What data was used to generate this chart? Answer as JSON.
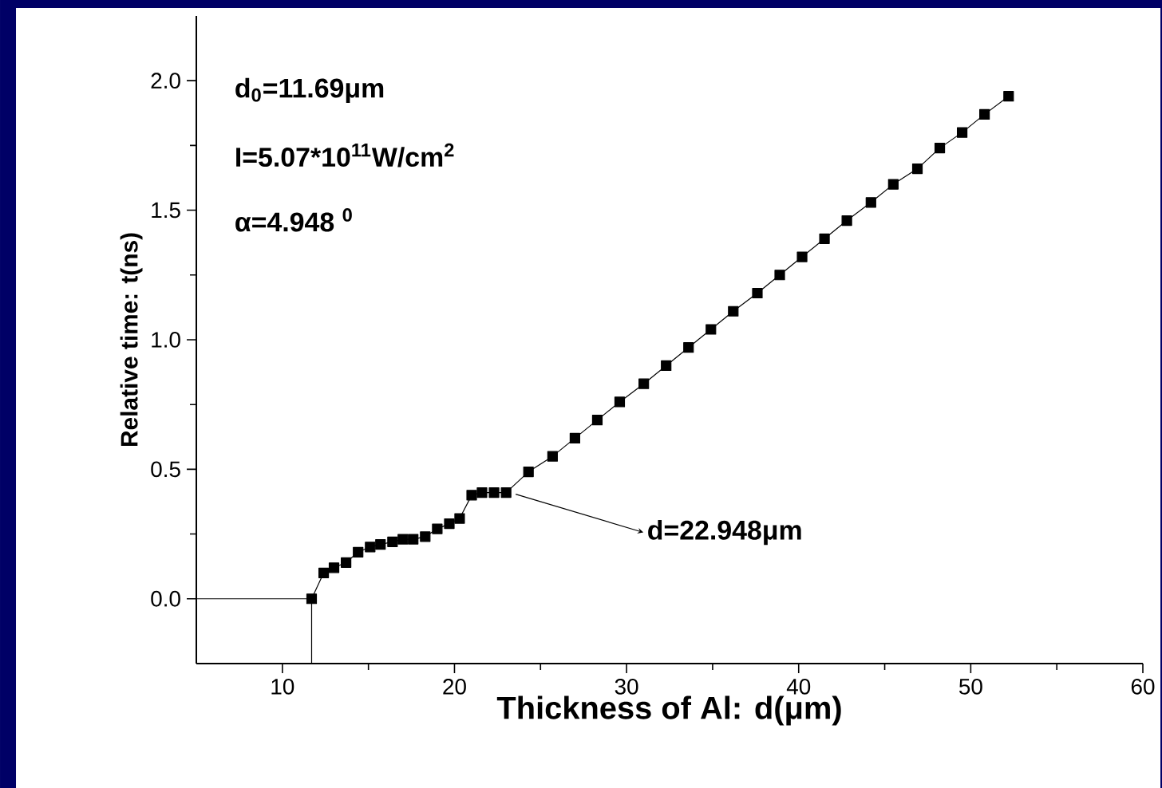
{
  "chart_data": {
    "type": "line",
    "xlabel": "Thickness of Al: d(μm)",
    "ylabel": "Relative time: t(ns)",
    "xlim": [
      5,
      60
    ],
    "ylim": [
      -0.25,
      2.25
    ],
    "xticks": [
      10,
      20,
      30,
      40,
      50,
      60
    ],
    "yticks": [
      {
        "value": 0,
        "label": "0.0"
      },
      {
        "value": 0.5,
        "label": "0.5"
      },
      {
        "value": 1,
        "label": "1.0"
      },
      {
        "value": 1.5,
        "label": "1.5"
      },
      {
        "value": 2,
        "label": "2.0"
      }
    ],
    "series": [
      {
        "color": "#000000",
        "marker": "square",
        "x": [
          11.7,
          12.4,
          13.0,
          13.7,
          14.4,
          15.1,
          15.7,
          16.4,
          17.0,
          17.6,
          18.3,
          19.0,
          19.7,
          20.3,
          21.0,
          21.6,
          22.3,
          23.0,
          24.3,
          25.7,
          27.0,
          28.3,
          29.6,
          31.0,
          32.3,
          33.6,
          34.9,
          36.2,
          37.6,
          38.9,
          40.2,
          41.5,
          42.8,
          44.2,
          45.5,
          46.9,
          48.2,
          49.5,
          50.8,
          52.2
        ],
        "values": [
          0.0,
          0.1,
          0.12,
          0.14,
          0.18,
          0.2,
          0.21,
          0.22,
          0.23,
          0.23,
          0.24,
          0.27,
          0.29,
          0.31,
          0.4,
          0.41,
          0.41,
          0.41,
          0.49,
          0.55,
          0.62,
          0.69,
          0.76,
          0.83,
          0.9,
          0.97,
          1.04,
          1.11,
          1.18,
          1.25,
          1.32,
          1.39,
          1.46,
          1.53,
          1.6,
          1.66,
          1.74,
          1.8,
          1.87,
          1.94
        ]
      },
      {
        "color": "#000000",
        "marker": "none",
        "x": [
          5,
          11.7,
          11.7
        ],
        "values": [
          0,
          0,
          -0.25
        ]
      }
    ],
    "annotations": [
      "d$_{0}$=11.69μm",
      "I=5.07*10$^{11}$W/cm$^{2}$",
      "α=4.948 $^{0}$",
      {
        "text": "d=22.948μm",
        "x": 23.0,
        "y": 0.41
      }
    ]
  }
}
